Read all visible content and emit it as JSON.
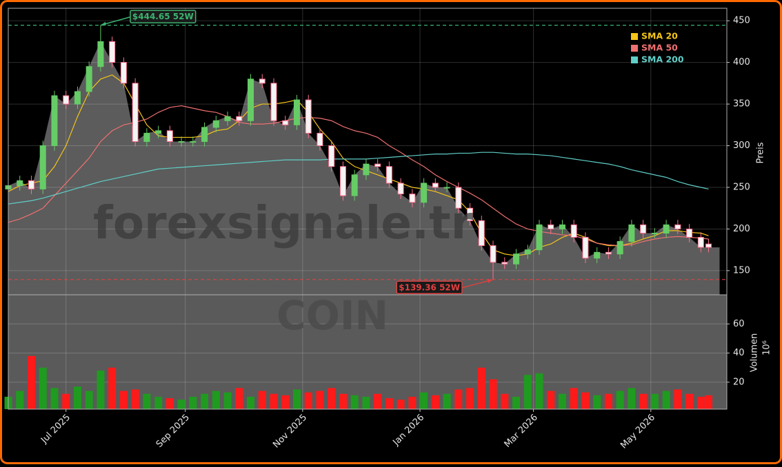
{
  "chart_data": {
    "type": "candlestick",
    "ticker": "COIN",
    "watermark": "forexsignale.tr",
    "x": [
      0,
      6,
      12,
      18,
      24,
      30,
      36,
      42,
      48,
      54,
      60,
      66,
      72,
      78,
      84,
      90,
      96,
      102,
      108,
      114,
      120,
      126,
      132,
      138,
      144,
      150,
      156,
      162,
      168,
      174,
      180,
      186,
      192,
      198,
      204,
      210,
      216,
      222,
      228,
      234,
      240,
      246,
      252,
      258,
      264,
      270,
      276,
      282,
      288,
      294,
      300,
      306,
      312,
      318,
      324,
      330,
      336,
      342,
      348,
      354,
      360,
      364
    ],
    "xlim": [
      0,
      373.5
    ],
    "xticks": [
      {
        "value": 30,
        "label": "Jul 2025"
      },
      {
        "value": 92,
        "label": "Sep 2025"
      },
      {
        "value": 153,
        "label": "Nov 2025"
      },
      {
        "value": 214,
        "label": "Jan 2026"
      },
      {
        "value": 273,
        "label": "Mar 2026"
      },
      {
        "value": 334,
        "label": "May 2026"
      }
    ],
    "open": [
      248,
      252,
      258,
      248,
      300,
      360,
      350,
      365,
      395,
      425,
      400,
      375,
      305,
      315,
      318,
      305,
      305,
      305,
      322,
      330,
      335,
      330,
      380,
      375,
      330,
      325,
      355,
      315,
      300,
      275,
      240,
      265,
      278,
      275,
      255,
      242,
      232,
      255,
      250,
      250,
      225,
      210,
      180,
      160,
      158,
      170,
      175,
      205,
      200,
      205,
      190,
      165,
      172,
      170,
      185,
      205,
      195,
      195,
      205,
      200,
      190,
      182
    ],
    "high": [
      258,
      264,
      264,
      306,
      366,
      366,
      371,
      401,
      444.65,
      431,
      406,
      381,
      321,
      324,
      324,
      311,
      311,
      328,
      336,
      341,
      341,
      386,
      386,
      381,
      336,
      361,
      361,
      321,
      306,
      281,
      271,
      284,
      284,
      281,
      261,
      248,
      261,
      261,
      256,
      256,
      231,
      216,
      186,
      166,
      176,
      181,
      211,
      211,
      211,
      211,
      196,
      178,
      178,
      191,
      211,
      211,
      201,
      211,
      211,
      206,
      196,
      188
    ],
    "low": [
      242,
      246,
      242,
      242,
      294,
      344,
      344,
      359,
      389,
      394,
      369,
      299,
      299,
      309,
      299,
      299,
      299,
      299,
      316,
      324,
      324,
      324,
      369,
      324,
      319,
      319,
      309,
      294,
      269,
      234,
      234,
      259,
      269,
      249,
      236,
      226,
      226,
      244,
      244,
      219,
      204,
      174,
      139.36,
      152,
      152,
      164,
      169,
      194,
      194,
      184,
      159,
      159,
      164,
      164,
      179,
      189,
      189,
      189,
      194,
      184,
      172,
      172
    ],
    "close": [
      252,
      258,
      248,
      300,
      360,
      350,
      365,
      395,
      425,
      400,
      375,
      305,
      315,
      318,
      305,
      305,
      305,
      322,
      330,
      335,
      330,
      380,
      375,
      330,
      325,
      355,
      315,
      300,
      275,
      240,
      265,
      278,
      275,
      255,
      242,
      232,
      255,
      250,
      250,
      225,
      210,
      180,
      160,
      158,
      170,
      175,
      205,
      200,
      205,
      190,
      165,
      172,
      170,
      185,
      205,
      195,
      195,
      205,
      200,
      190,
      178,
      178
    ],
    "up_color": "#66cc66",
    "down_color": "#ff6f8f",
    "area_color": "#5c5c5c",
    "ylim": [
      121,
      465
    ],
    "yticks": [
      150,
      200,
      250,
      300,
      350,
      400,
      450
    ],
    "ylabel": "Preis",
    "grid": true,
    "legend": "upper right",
    "series": [
      {
        "name": "SMA 20",
        "color": "#f5c518",
        "values": [
          245,
          252,
          255,
          258,
          275,
          300,
          335,
          365,
          380,
          385,
          375,
          350,
          325,
          312,
          310,
          310,
          310,
          312,
          318,
          320,
          330,
          345,
          350,
          350,
          352,
          355,
          340,
          320,
          305,
          285,
          275,
          270,
          265,
          260,
          255,
          250,
          248,
          245,
          240,
          235,
          220,
          195,
          175,
          170,
          168,
          170,
          178,
          182,
          190,
          195,
          190,
          183,
          180,
          180,
          183,
          188,
          192,
          198,
          198,
          196,
          195,
          192
        ]
      },
      {
        "name": "SMA 50",
        "color": "#f07070",
        "values": [
          208,
          212,
          218,
          225,
          240,
          255,
          270,
          285,
          305,
          318,
          325,
          328,
          332,
          340,
          346,
          348,
          345,
          342,
          340,
          335,
          328,
          326,
          326,
          327,
          330,
          333,
          334,
          333,
          330,
          323,
          318,
          315,
          310,
          300,
          292,
          283,
          275,
          265,
          257,
          250,
          243,
          235,
          225,
          215,
          206,
          200,
          197,
          195,
          193,
          192,
          188,
          183,
          181,
          180,
          181,
          185,
          188,
          190,
          191,
          190,
          189,
          188
        ]
      },
      {
        "name": "SMA 200",
        "color": "#5fcfc8",
        "values": [
          230,
          232,
          234,
          237,
          241,
          245,
          249,
          253,
          257,
          260,
          263,
          266,
          269,
          272,
          273,
          274,
          275,
          276,
          277,
          278,
          279,
          280,
          281,
          282,
          283,
          283,
          283,
          283,
          284,
          284,
          284,
          284,
          285,
          286,
          287,
          288,
          289,
          290,
          290,
          291,
          291,
          292,
          292,
          291,
          290,
          290,
          289,
          288,
          286,
          284,
          282,
          280,
          278,
          275,
          271,
          268,
          265,
          262,
          257,
          253,
          250,
          248
        ]
      }
    ],
    "high_mark": {
      "value": 444.65,
      "label": "$444.65 52W",
      "color": "#3cb371"
    },
    "low_mark": {
      "value": 139.36,
      "label": "$139.36 52W",
      "color": "#e04040"
    },
    "volume": {
      "values": [
        10,
        14,
        38,
        30,
        16,
        12,
        17,
        14,
        28,
        30,
        14,
        15,
        12,
        10,
        9,
        8,
        10,
        12,
        14,
        13,
        16,
        10,
        14,
        12,
        11,
        15,
        13,
        14,
        16,
        12,
        11,
        10,
        12,
        9,
        8,
        10,
        13,
        11,
        12,
        15,
        16,
        30,
        22,
        12,
        10,
        25,
        26,
        14,
        12,
        16,
        13,
        11,
        12,
        14,
        16,
        12,
        12,
        14,
        15,
        12,
        10,
        11
      ],
      "up_color": "#1f9b1f",
      "down_color": "#ff1a1a",
      "ylim": [
        1.5,
        80
      ],
      "yticks": [
        20,
        40,
        60
      ],
      "ylabel": "Volumen",
      "unit": "10⁶"
    }
  }
}
